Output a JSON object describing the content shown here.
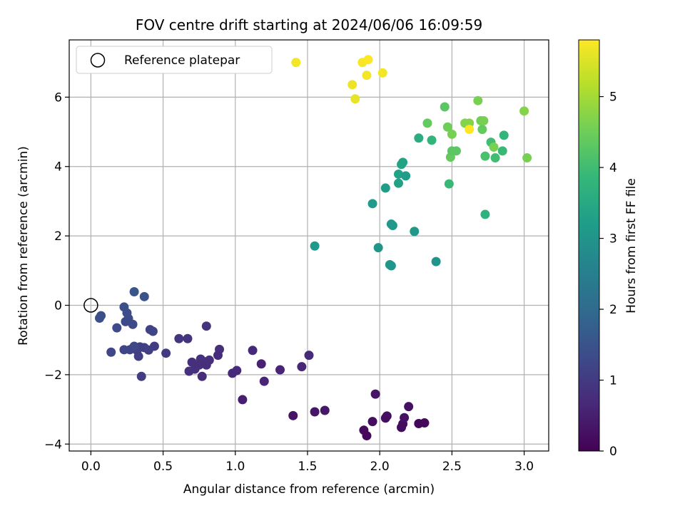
{
  "chart_data": {
    "type": "scatter",
    "title": "FOV centre drift starting at 2024/06/06 16:09:59",
    "xlabel": "Angular distance from reference (arcmin)",
    "ylabel": "Rotation from reference (arcmin)",
    "xlim": [
      -0.15,
      3.17
    ],
    "ylim": [
      -4.2,
      7.65
    ],
    "xticks": [
      0.0,
      0.5,
      1.0,
      1.5,
      2.0,
      2.5,
      3.0
    ],
    "xtick_labels": [
      "0.0",
      "0.5",
      "1.0",
      "1.5",
      "2.0",
      "2.5",
      "3.0"
    ],
    "yticks": [
      -4,
      -2,
      0,
      2,
      4,
      6
    ],
    "ytick_labels": [
      "−4",
      "−2",
      "0",
      "2",
      "4",
      "6"
    ],
    "grid": true,
    "legend": {
      "placement": "top-left",
      "entries": [
        "Reference platepar"
      ]
    },
    "reference_point": {
      "x": 0.0,
      "y": 0.0,
      "label": "Reference platepar"
    },
    "colorbar": {
      "label": "Hours from first FF file",
      "min": 0,
      "max": 5.8,
      "ticks": [
        0,
        1,
        2,
        3,
        4,
        5
      ],
      "tick_labels": [
        "0",
        "1",
        "2",
        "3",
        "4",
        "5"
      ],
      "colormap": "viridis",
      "colormap_stops": [
        "#440154",
        "#482878",
        "#3e4989",
        "#31688e",
        "#26828e",
        "#1f9e89",
        "#35b779",
        "#6ece58",
        "#b5de2b",
        "#fde725"
      ]
    },
    "marker_color": "value-mapped",
    "series": [
      {
        "points": [
          [
            1.89,
            -3.6,
            0.15
          ],
          [
            1.91,
            -3.76,
            0.12
          ],
          [
            1.95,
            -3.35,
            0.2
          ],
          [
            1.97,
            -2.56,
            0.3
          ],
          [
            2.04,
            -3.25,
            0.25
          ],
          [
            2.05,
            -3.19,
            0.22
          ],
          [
            2.15,
            -3.52,
            0.18
          ],
          [
            2.16,
            -3.42,
            0.2
          ],
          [
            2.17,
            -3.24,
            0.28
          ],
          [
            2.2,
            -2.92,
            0.25
          ],
          [
            2.27,
            -3.41,
            0.1
          ],
          [
            2.31,
            -3.39,
            0.12
          ],
          [
            1.4,
            -3.18,
            0.3
          ],
          [
            1.55,
            -3.07,
            0.35
          ],
          [
            1.62,
            -3.03,
            0.38
          ],
          [
            1.05,
            -2.72,
            0.5
          ],
          [
            1.2,
            -2.19,
            0.6
          ],
          [
            1.18,
            -1.69,
            0.55
          ],
          [
            1.12,
            -1.3,
            0.65
          ],
          [
            1.31,
            -1.86,
            0.6
          ],
          [
            1.46,
            -1.77,
            0.62
          ],
          [
            1.51,
            -1.44,
            0.7
          ],
          [
            0.98,
            -1.96,
            0.7
          ],
          [
            1.01,
            -1.88,
            0.68
          ],
          [
            0.89,
            -1.27,
            0.8
          ],
          [
            0.88,
            -1.44,
            0.75
          ],
          [
            0.8,
            -0.6,
            0.85
          ],
          [
            0.78,
            -1.62,
            0.78
          ],
          [
            0.76,
            -1.55,
            0.82
          ],
          [
            0.77,
            -2.05,
            0.72
          ],
          [
            0.8,
            -1.72,
            0.76
          ],
          [
            0.82,
            -1.58,
            0.8
          ],
          [
            0.7,
            -1.64,
            0.8
          ],
          [
            0.72,
            -1.84,
            0.78
          ],
          [
            0.68,
            -1.9,
            0.82
          ],
          [
            0.75,
            -1.72,
            0.8
          ],
          [
            0.61,
            -0.96,
            0.9
          ],
          [
            0.67,
            -0.96,
            0.88
          ],
          [
            0.52,
            -1.38,
            1.0
          ],
          [
            0.44,
            -1.18,
            1.05
          ],
          [
            0.4,
            -1.29,
            1.1
          ],
          [
            0.37,
            -1.22,
            1.12
          ],
          [
            0.41,
            -0.7,
            1.15
          ],
          [
            0.43,
            -0.75,
            1.2
          ],
          [
            0.34,
            -1.2,
            1.1
          ],
          [
            0.32,
            -1.3,
            1.12
          ],
          [
            0.33,
            -1.47,
            1.08
          ],
          [
            0.35,
            -2.05,
            1.05
          ],
          [
            0.29,
            -1.24,
            1.15
          ],
          [
            0.27,
            -1.28,
            1.2
          ],
          [
            0.23,
            -1.28,
            1.22
          ],
          [
            0.3,
            -1.18,
            1.25
          ],
          [
            0.29,
            -0.55,
            1.3
          ],
          [
            0.26,
            -0.38,
            1.35
          ],
          [
            0.25,
            -0.22,
            1.38
          ],
          [
            0.23,
            -0.05,
            1.4
          ],
          [
            0.24,
            -0.47,
            1.32
          ],
          [
            0.18,
            -0.65,
            1.3
          ],
          [
            0.14,
            -1.35,
            1.25
          ],
          [
            0.06,
            -0.37,
            1.45
          ],
          [
            0.07,
            -0.3,
            1.42
          ],
          [
            0.3,
            0.39,
            1.55
          ],
          [
            0.37,
            0.25,
            1.5
          ],
          [
            1.55,
            1.71,
            3.1
          ],
          [
            1.99,
            1.66,
            3.0
          ],
          [
            2.07,
            1.17,
            3.05
          ],
          [
            2.08,
            1.14,
            3.0
          ],
          [
            2.39,
            1.26,
            3.0
          ],
          [
            1.95,
            2.93,
            3.15
          ],
          [
            2.24,
            2.13,
            3.05
          ],
          [
            2.08,
            2.34,
            3.1
          ],
          [
            2.09,
            2.3,
            3.08
          ],
          [
            2.04,
            3.38,
            3.2
          ],
          [
            2.13,
            3.52,
            3.3
          ],
          [
            2.13,
            3.78,
            3.3
          ],
          [
            2.18,
            3.73,
            3.2
          ],
          [
            2.15,
            4.06,
            3.4
          ],
          [
            2.16,
            4.12,
            3.35
          ],
          [
            2.27,
            4.82,
            3.6
          ],
          [
            2.36,
            4.76,
            3.8
          ],
          [
            2.48,
            3.5,
            3.9
          ],
          [
            2.33,
            5.25,
            4.4
          ],
          [
            2.45,
            5.72,
            4.3
          ],
          [
            2.47,
            5.14,
            4.5
          ],
          [
            2.5,
            4.93,
            4.6
          ],
          [
            2.49,
            4.27,
            4.4
          ],
          [
            2.5,
            4.45,
            4.3
          ],
          [
            2.53,
            4.45,
            4.3
          ],
          [
            2.59,
            5.25,
            4.7
          ],
          [
            2.62,
            5.25,
            4.7
          ],
          [
            2.68,
            5.9,
            4.6
          ],
          [
            2.7,
            5.32,
            4.5
          ],
          [
            2.72,
            5.32,
            4.6
          ],
          [
            2.71,
            5.07,
            4.4
          ],
          [
            2.73,
            4.3,
            4.1
          ],
          [
            2.73,
            2.62,
            3.7
          ],
          [
            2.77,
            4.7,
            4.0
          ],
          [
            2.79,
            4.56,
            4.6
          ],
          [
            2.8,
            4.25,
            4.0
          ],
          [
            2.85,
            4.45,
            3.9
          ],
          [
            2.86,
            4.9,
            3.8
          ],
          [
            3.0,
            5.6,
            4.7
          ],
          [
            3.02,
            4.25,
            4.6
          ],
          [
            2.62,
            5.07,
            5.8
          ],
          [
            1.42,
            7.0,
            5.7
          ],
          [
            1.88,
            7.0,
            5.75
          ],
          [
            1.92,
            7.08,
            5.8
          ],
          [
            1.91,
            6.63,
            5.7
          ],
          [
            2.02,
            6.7,
            5.7
          ],
          [
            1.81,
            6.36,
            5.65
          ],
          [
            1.83,
            5.95,
            5.6
          ]
        ]
      }
    ]
  }
}
